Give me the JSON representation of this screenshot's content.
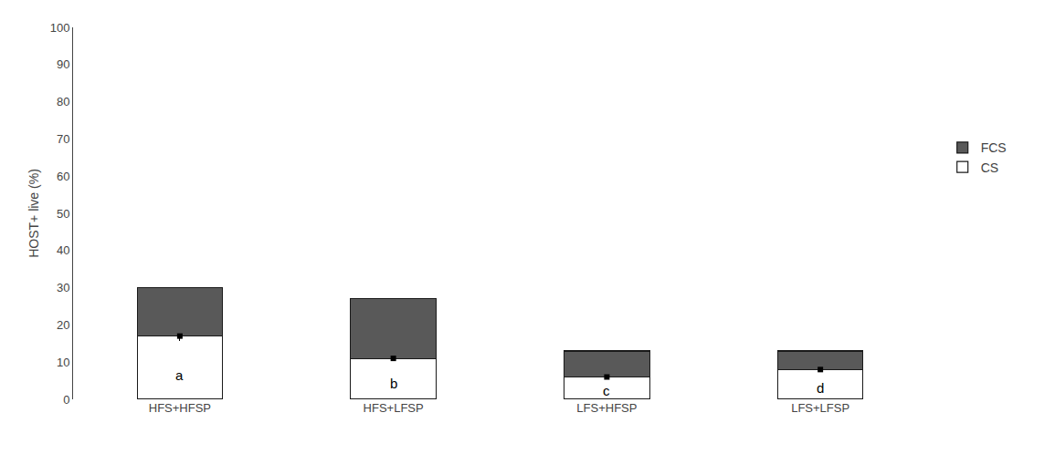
{
  "chart_data": {
    "type": "bar",
    "stacked": true,
    "categories": [
      "HFS+HFSP",
      "HFS+LFSP",
      "LFS+HFSP",
      "LFS+LFSP"
    ],
    "series": [
      {
        "name": "CS",
        "color": "#ffffff",
        "values": [
          17.0,
          11.0,
          6.0,
          8.0
        ],
        "errors": [
          1.2,
          0.8,
          0.6,
          0.6
        ],
        "marker": "square"
      },
      {
        "name": "FCS",
        "color": "#595959",
        "values": [
          13.0,
          16.0,
          7.0,
          5.0
        ]
      }
    ],
    "annotations": [
      {
        "x": "HFS+HFSP",
        "text": "a"
      },
      {
        "x": "HFS+LFSP",
        "text": "b"
      },
      {
        "x": "LFS+HFSP",
        "text": "c"
      },
      {
        "x": "LFS+LFSP",
        "text": "d"
      }
    ],
    "ylabel": "HOST+ live (%)",
    "ylim": [
      0,
      100
    ],
    "yticks": [
      0,
      10,
      20,
      30,
      40,
      50,
      60,
      70,
      80,
      90,
      100
    ],
    "grid": false,
    "legend": "right"
  }
}
